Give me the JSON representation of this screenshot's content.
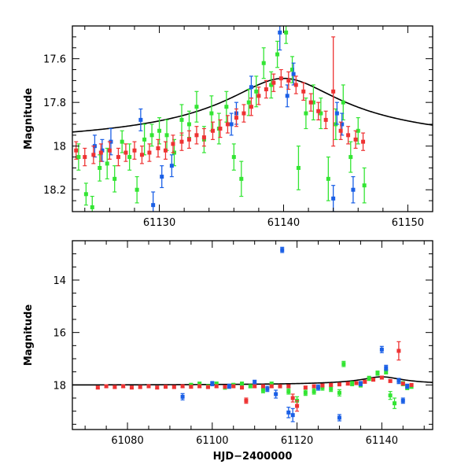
{
  "chart_data": [
    {
      "type": "scatter",
      "panel": "top",
      "xlabel": "",
      "ylabel": "Magnitude",
      "xlim": [
        61123,
        61152
      ],
      "ylim": [
        18.3,
        17.45
      ],
      "y_inverted": true,
      "x_ticks": [
        61130,
        61140,
        61150
      ],
      "x_tick_labels": [
        "61130",
        "61140",
        "61150"
      ],
      "y_ticks": [
        17.6,
        17.8,
        18.0,
        18.2
      ],
      "y_tick_labels": [
        "17.6",
        "17.8",
        "18",
        "18.2"
      ],
      "model_curve": {
        "name": "microlensing model",
        "baseline": 18.02,
        "peak_time": 61140.0,
        "peak_mag": 17.69,
        "timescale": 4.5,
        "color": "#000000"
      },
      "series": [
        {
          "name": "green",
          "color": "#33e533",
          "points": [
            [
              61123.5,
              18.05,
              0.06
            ],
            [
              61124.1,
              18.22,
              0.05
            ],
            [
              61124.6,
              18.28,
              0.05
            ],
            [
              61125.2,
              18.1,
              0.06
            ],
            [
              61125.8,
              18.08,
              0.07
            ],
            [
              61126.4,
              18.15,
              0.06
            ],
            [
              61127.0,
              17.98,
              0.05
            ],
            [
              61127.6,
              18.05,
              0.06
            ],
            [
              61128.2,
              18.2,
              0.06
            ],
            [
              61128.8,
              17.97,
              0.07
            ],
            [
              61129.4,
              17.95,
              0.05
            ],
            [
              61130.0,
              17.93,
              0.06
            ],
            [
              61130.6,
              17.95,
              0.07
            ],
            [
              61131.2,
              18.03,
              0.06
            ],
            [
              61131.8,
              17.88,
              0.07
            ],
            [
              61132.4,
              17.9,
              0.06
            ],
            [
              61133.0,
              17.82,
              0.07
            ],
            [
              61133.6,
              17.97,
              0.06
            ],
            [
              61134.2,
              17.85,
              0.08
            ],
            [
              61134.8,
              17.92,
              0.07
            ],
            [
              61135.4,
              17.82,
              0.07
            ],
            [
              61136.0,
              18.05,
              0.06
            ],
            [
              61136.6,
              18.15,
              0.08
            ],
            [
              61137.2,
              17.8,
              0.06
            ],
            [
              61137.8,
              17.75,
              0.07
            ],
            [
              61138.4,
              17.62,
              0.07
            ],
            [
              61139.0,
              17.72,
              0.06
            ],
            [
              61139.5,
              17.58,
              0.06
            ],
            [
              61140.2,
              17.48,
              0.05
            ],
            [
              61140.7,
              17.65,
              0.06
            ],
            [
              61141.2,
              18.1,
              0.1
            ],
            [
              61141.8,
              17.85,
              0.07
            ],
            [
              61142.4,
              17.8,
              0.08
            ],
            [
              61143.0,
              17.85,
              0.07
            ],
            [
              61143.6,
              18.15,
              0.1
            ],
            [
              61144.2,
              17.9,
              0.07
            ],
            [
              61144.8,
              17.8,
              0.08
            ],
            [
              61145.4,
              18.05,
              0.07
            ],
            [
              61146.0,
              17.93,
              0.06
            ],
            [
              61146.5,
              18.18,
              0.08
            ]
          ]
        },
        {
          "name": "blue",
          "color": "#1a5fe6",
          "points": [
            [
              61124.8,
              18.0,
              0.05
            ],
            [
              61125.4,
              18.02,
              0.05
            ],
            [
              61126.1,
              17.98,
              0.06
            ],
            [
              61128.5,
              17.88,
              0.05
            ],
            [
              61129.5,
              18.27,
              0.06
            ],
            [
              61130.2,
              18.14,
              0.05
            ],
            [
              61131.0,
              18.09,
              0.05
            ],
            [
              61135.8,
              17.9,
              0.05
            ],
            [
              61136.2,
              17.85,
              0.05
            ],
            [
              61137.4,
              17.73,
              0.05
            ],
            [
              61139.7,
              17.48,
              0.08
            ],
            [
              61140.3,
              17.77,
              0.05
            ],
            [
              61140.8,
              17.67,
              0.05
            ],
            [
              61144.0,
              18.24,
              0.06
            ],
            [
              61144.3,
              17.85,
              0.05
            ],
            [
              61144.7,
              17.9,
              0.05
            ],
            [
              61145.6,
              18.2,
              0.06
            ]
          ]
        },
        {
          "name": "red",
          "color": "#ee3333",
          "points": [
            [
              61123.3,
              18.02,
              0.04
            ],
            [
              61124.0,
              18.05,
              0.04
            ],
            [
              61124.7,
              18.04,
              0.04
            ],
            [
              61125.3,
              18.03,
              0.04
            ],
            [
              61126.0,
              18.02,
              0.04
            ],
            [
              61126.7,
              18.05,
              0.04
            ],
            [
              61127.3,
              18.03,
              0.04
            ],
            [
              61128.0,
              18.02,
              0.04
            ],
            [
              61128.6,
              18.04,
              0.04
            ],
            [
              61129.2,
              18.03,
              0.04
            ],
            [
              61129.9,
              18.01,
              0.04
            ],
            [
              61130.5,
              18.02,
              0.04
            ],
            [
              61131.1,
              17.99,
              0.04
            ],
            [
              61131.8,
              17.98,
              0.04
            ],
            [
              61132.4,
              17.97,
              0.04
            ],
            [
              61133.0,
              17.95,
              0.04
            ],
            [
              61133.6,
              17.96,
              0.04
            ],
            [
              61134.3,
              17.93,
              0.04
            ],
            [
              61134.9,
              17.92,
              0.04
            ],
            [
              61135.5,
              17.9,
              0.04
            ],
            [
              61136.2,
              17.87,
              0.04
            ],
            [
              61136.8,
              17.85,
              0.04
            ],
            [
              61137.4,
              17.82,
              0.04
            ],
            [
              61138.0,
              17.77,
              0.04
            ],
            [
              61138.6,
              17.74,
              0.04
            ],
            [
              61139.2,
              17.71,
              0.04
            ],
            [
              61139.8,
              17.69,
              0.04
            ],
            [
              61140.4,
              17.7,
              0.04
            ],
            [
              61141.0,
              17.72,
              0.04
            ],
            [
              61141.6,
              17.75,
              0.04
            ],
            [
              61142.2,
              17.8,
              0.04
            ],
            [
              61142.8,
              17.84,
              0.04
            ],
            [
              61143.4,
              17.88,
              0.04
            ],
            [
              61144.0,
              17.75,
              0.25
            ],
            [
              61144.6,
              17.93,
              0.04
            ],
            [
              61145.2,
              17.95,
              0.04
            ],
            [
              61145.8,
              17.97,
              0.04
            ],
            [
              61146.4,
              17.98,
              0.04
            ]
          ]
        }
      ]
    },
    {
      "type": "scatter",
      "panel": "bottom",
      "xlabel": "HJD−2400000",
      "ylabel": "Magnitude",
      "xlim": [
        61067,
        61152
      ],
      "ylim": [
        19.7,
        12.5
      ],
      "y_inverted": true,
      "x_ticks": [
        61080,
        61100,
        61120,
        61140
      ],
      "x_tick_labels": [
        "61080",
        "61100",
        "61120",
        "61140"
      ],
      "y_ticks": [
        14,
        16,
        18
      ],
      "y_tick_labels": [
        "14",
        "16",
        "18"
      ],
      "model_curve": {
        "name": "microlensing model",
        "baseline": 18.02,
        "peak_time": 61140.0,
        "peak_mag": 17.69,
        "timescale": 4.5,
        "color": "#000000"
      },
      "series": [
        {
          "name": "green",
          "color": "#33e533",
          "points": [
            [
              61095,
              18.0,
              0.06
            ],
            [
              61097,
              17.95,
              0.06
            ],
            [
              61099,
              18.05,
              0.06
            ],
            [
              61101,
              17.95,
              0.06
            ],
            [
              61103,
              18.1,
              0.06
            ],
            [
              61105,
              18.0,
              0.06
            ],
            [
              61107,
              17.95,
              0.06
            ],
            [
              61109,
              18.05,
              0.06
            ],
            [
              61112,
              18.2,
              0.1
            ],
            [
              61114,
              17.95,
              0.06
            ],
            [
              61116,
              18.05,
              0.06
            ],
            [
              61118,
              18.25,
              0.1
            ],
            [
              61120,
              18.6,
              0.15
            ],
            [
              61122,
              18.3,
              0.1
            ],
            [
              61124,
              18.25,
              0.1
            ],
            [
              61126,
              18.1,
              0.1
            ],
            [
              61128,
              18.15,
              0.1
            ],
            [
              61130,
              18.3,
              0.12
            ],
            [
              61131,
              17.2,
              0.1
            ],
            [
              61133,
              17.95,
              0.08
            ],
            [
              61135,
              18.0,
              0.08
            ],
            [
              61137,
              17.75,
              0.08
            ],
            [
              61139,
              17.55,
              0.08
            ],
            [
              61141,
              17.5,
              0.08
            ],
            [
              61142,
              18.4,
              0.15
            ],
            [
              61143,
              18.7,
              0.2
            ],
            [
              61145,
              17.95,
              0.08
            ],
            [
              61146,
              18.1,
              0.08
            ],
            [
              61147,
              18.05,
              0.08
            ]
          ]
        },
        {
          "name": "blue",
          "color": "#1a5fe6",
          "points": [
            [
              61093,
              18.45,
              0.12
            ],
            [
              61100,
              17.95,
              0.08
            ],
            [
              61104,
              18.05,
              0.08
            ],
            [
              61110,
              17.9,
              0.08
            ],
            [
              61113,
              18.15,
              0.1
            ],
            [
              61115,
              18.35,
              0.15
            ],
            [
              61116.5,
              12.85,
              0.1
            ],
            [
              61118,
              19.05,
              0.2
            ],
            [
              61119,
              19.15,
              0.25
            ],
            [
              61125,
              18.1,
              0.1
            ],
            [
              61130,
              19.25,
              0.12
            ],
            [
              61135,
              17.95,
              0.08
            ],
            [
              61140,
              16.65,
              0.12
            ],
            [
              61141,
              17.35,
              0.1
            ],
            [
              61144,
              17.85,
              0.1
            ],
            [
              61145,
              18.6,
              0.1
            ],
            [
              61146,
              18.05,
              0.08
            ]
          ]
        },
        {
          "name": "red",
          "color": "#ee3333",
          "points": [
            [
              61073,
              18.1,
              0.05
            ],
            [
              61075,
              18.05,
              0.05
            ],
            [
              61077,
              18.08,
              0.05
            ],
            [
              61079,
              18.05,
              0.05
            ],
            [
              61081,
              18.1,
              0.05
            ],
            [
              61083,
              18.08,
              0.05
            ],
            [
              61085,
              18.05,
              0.05
            ],
            [
              61087,
              18.1,
              0.05
            ],
            [
              61089,
              18.07,
              0.05
            ],
            [
              61091,
              18.08,
              0.05
            ],
            [
              61093,
              18.05,
              0.05
            ],
            [
              61095,
              18.07,
              0.05
            ],
            [
              61097,
              18.05,
              0.05
            ],
            [
              61099,
              18.08,
              0.05
            ],
            [
              61101,
              18.05,
              0.05
            ],
            [
              61103,
              18.07,
              0.05
            ],
            [
              61105,
              18.05,
              0.05
            ],
            [
              61107,
              18.1,
              0.05
            ],
            [
              61108,
              18.6,
              0.1
            ],
            [
              61110,
              18.05,
              0.05
            ],
            [
              61112,
              18.05,
              0.05
            ],
            [
              61114,
              18.05,
              0.05
            ],
            [
              61116,
              18.05,
              0.05
            ],
            [
              61118,
              18.05,
              0.05
            ],
            [
              61119,
              18.5,
              0.15
            ],
            [
              61120,
              18.8,
              0.2
            ],
            [
              61122,
              18.1,
              0.05
            ],
            [
              61124,
              18.05,
              0.05
            ],
            [
              61126,
              18.02,
              0.05
            ],
            [
              61128,
              18.0,
              0.05
            ],
            [
              61130,
              17.98,
              0.05
            ],
            [
              61132,
              17.95,
              0.05
            ],
            [
              61134,
              17.93,
              0.05
            ],
            [
              61136,
              17.88,
              0.05
            ],
            [
              61138,
              17.8,
              0.05
            ],
            [
              61140,
              17.72,
              0.05
            ],
            [
              61142,
              17.85,
              0.05
            ],
            [
              61144,
              16.7,
              0.35
            ],
            [
              61145,
              17.95,
              0.05
            ],
            [
              61147,
              18.0,
              0.05
            ]
          ]
        }
      ]
    }
  ]
}
